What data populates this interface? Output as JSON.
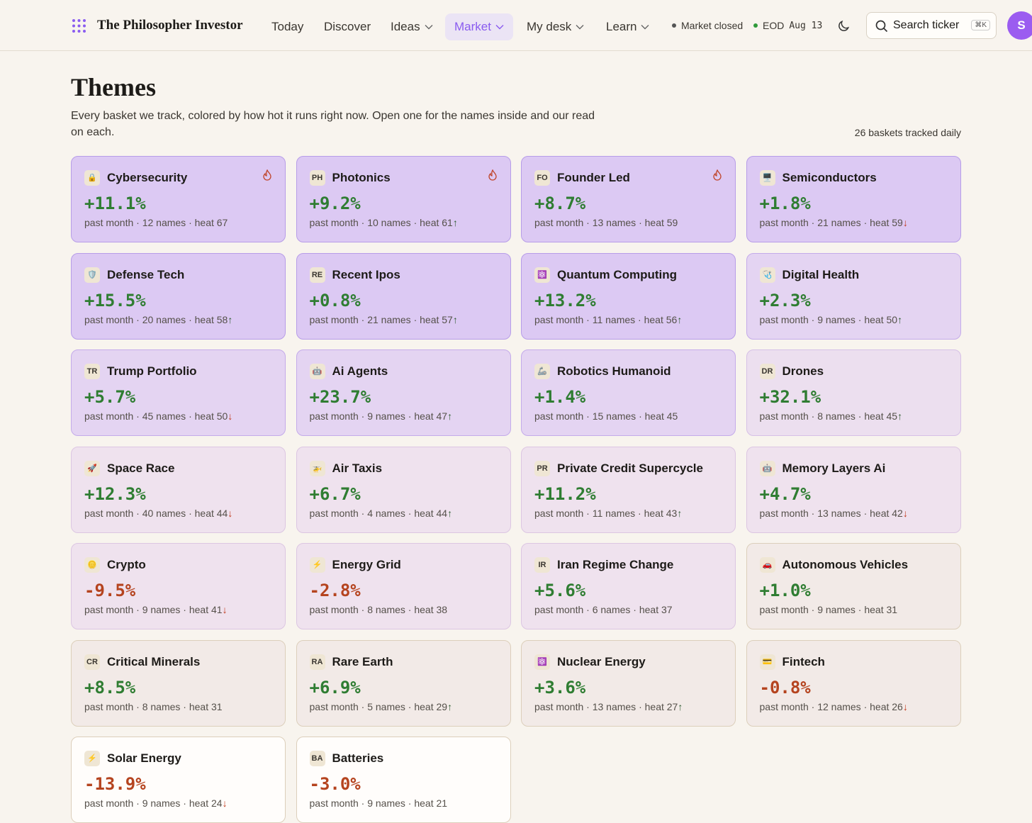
{
  "header": {
    "brand": "The Philosopher Investor",
    "nav": [
      "Today",
      "Discover",
      "Ideas",
      "Market",
      "My desk",
      "Learn"
    ],
    "active_nav": 3,
    "dropdown_nav": [
      2,
      3,
      4,
      5
    ],
    "status": [
      "Market closed"
    ],
    "eod_label": "EOD",
    "eod_date": "Aug 13",
    "search": "Search ticker",
    "shortcut": "⌘K",
    "avatar": "S"
  },
  "page": {
    "title": "Themes",
    "description": "Every basket we track, colored by how hot it runs right now. Open one for the names inside and our read on each.",
    "count": "26 baskets tracked daily"
  },
  "cards": [
    {
      "icon": "🔒",
      "name": "Cybersecurity",
      "change": "+11.1%",
      "meta": "past month · 12 names · heat 67",
      "hot": true,
      "color": "#2f7d32",
      "bg": "#dcc9f3",
      "border": "#b79de8"
    },
    {
      "icon": "PH",
      "name": "Photonics",
      "change": "+9.2%",
      "meta": "past month · 10 names · heat 61",
      "trend": "↑",
      "trend_color": "#2f5d32",
      "hot": true,
      "color": "#2f7d32",
      "bg": "#dcc9f3",
      "border": "#b79de8"
    },
    {
      "icon": "FO",
      "name": "Founder Led",
      "change": "+8.7%",
      "meta": "past month · 13 names · heat 59",
      "hot": true,
      "color": "#2f7d32",
      "bg": "#dcc9f3",
      "border": "#b79de8"
    },
    {
      "icon": "🖥️",
      "name": "Semiconductors",
      "change": "+1.8%",
      "meta": "past month · 21 names · heat 59",
      "trend": "↓",
      "trend_color": "#c0391b",
      "color": "#2f7d32",
      "bg": "#dcc9f3",
      "border": "#b79de8"
    },
    {
      "icon": "🛡️",
      "name": "Defense Tech",
      "change": "+15.5%",
      "meta": "past month · 20 names · heat 58",
      "trend": "↑",
      "trend_color": "#2f5d32",
      "color": "#2f7d32",
      "bg": "#dcc9f3",
      "border": "#b79de8"
    },
    {
      "icon": "RE",
      "name": "Recent Ipos",
      "change": "+0.8%",
      "meta": "past month · 21 names · heat 57",
      "trend": "↑",
      "trend_color": "#2f5d32",
      "color": "#2f7d32",
      "bg": "#dcc9f3",
      "border": "#b79de8"
    },
    {
      "icon": "⚛️",
      "name": "Quantum Computing",
      "change": "+13.2%",
      "meta": "past month · 11 names · heat 56",
      "trend": "↑",
      "trend_color": "#2f5d32",
      "color": "#2f7d32",
      "bg": "#dcc9f3",
      "border": "#b79de8"
    },
    {
      "icon": "🩺",
      "name": "Digital Health",
      "change": "+2.3%",
      "meta": "past month · 9 names · heat 50",
      "trend": "↑",
      "trend_color": "#2f5d32",
      "color": "#2f7d32",
      "bg": "#e4d4f2",
      "border": "#c4abea"
    },
    {
      "icon": "TR",
      "name": "Trump Portfolio",
      "change": "+5.7%",
      "meta": "past month · 45 names · heat 50",
      "trend": "↓",
      "trend_color": "#c0391b",
      "color": "#2f7d32",
      "bg": "#e4d4f2",
      "border": "#c4abea"
    },
    {
      "icon": "🤖",
      "name": "Ai Agents",
      "change": "+23.7%",
      "meta": "past month · 9 names · heat 47",
      "trend": "↑",
      "trend_color": "#2f5d32",
      "color": "#2f7d32",
      "bg": "#e4d4f2",
      "border": "#c4abea"
    },
    {
      "icon": "🦾",
      "name": "Robotics Humanoid",
      "change": "+1.4%",
      "meta": "past month · 15 names · heat 45",
      "color": "#2f7d32",
      "bg": "#e4d4f2",
      "border": "#c4abea"
    },
    {
      "icon": "DR",
      "name": "Drones",
      "change": "+32.1%",
      "meta": "past month · 8 names · heat 45",
      "trend": "↑",
      "trend_color": "#2f5d32",
      "color": "#2f7d32",
      "bg": "#ecdfef",
      "border": "#d6c0e6"
    },
    {
      "icon": "🚀",
      "name": "Space Race",
      "change": "+12.3%",
      "meta": "past month · 40 names · heat 44",
      "trend": "↓",
      "trend_color": "#c0391b",
      "color": "#2f7d32",
      "bg": "#efe2ee",
      "border": "#dcc6e2"
    },
    {
      "icon": "🚁",
      "name": "Air Taxis",
      "change": "+6.7%",
      "meta": "past month · 4 names · heat 44",
      "trend": "↑",
      "trend_color": "#2f5d32",
      "color": "#2f7d32",
      "bg": "#efe2ee",
      "border": "#dcc6e2"
    },
    {
      "icon": "PR",
      "name": "Private Credit Supercycle",
      "change": "+11.2%",
      "meta": "past month · 11 names · heat 43",
      "trend": "↑",
      "trend_color": "#2f5d32",
      "color": "#2f7d32",
      "bg": "#efe2ee",
      "border": "#dcc6e2"
    },
    {
      "icon": "🤖",
      "name": "Memory Layers Ai",
      "change": "+4.7%",
      "meta": "past month · 13 names · heat 42",
      "trend": "↓",
      "trend_color": "#c0391b",
      "color": "#2f7d32",
      "bg": "#efe2ee",
      "border": "#dcc6e2"
    },
    {
      "icon": "🪙",
      "name": "Crypto",
      "change": "-9.5%",
      "meta": "past month · 9 names · heat 41",
      "trend": "↓",
      "trend_color": "#c0391b",
      "color": "#b5441f",
      "bg": "#efe2ee",
      "border": "#dcc6e2"
    },
    {
      "icon": "⚡",
      "name": "Energy Grid",
      "change": "-2.8%",
      "meta": "past month · 8 names · heat 38",
      "color": "#b5441f",
      "bg": "#efe2ee",
      "border": "#dcc6e2"
    },
    {
      "icon": "IR",
      "name": "Iran Regime Change",
      "change": "+5.6%",
      "meta": "past month · 6 names · heat 37",
      "color": "#2f7d32",
      "bg": "#efe2ee",
      "border": "#dcc6e2"
    },
    {
      "icon": "🚗",
      "name": "Autonomous Vehicles",
      "change": "+1.0%",
      "meta": "past month · 9 names · heat 31",
      "color": "#2f7d32",
      "bg": "#f2eae7",
      "border": "#dccfbb"
    },
    {
      "icon": "CR",
      "name": "Critical Minerals",
      "change": "+8.5%",
      "meta": "past month · 8 names · heat 31",
      "color": "#2f7d32",
      "bg": "#f2eae7",
      "border": "#dccfbb"
    },
    {
      "icon": "RA",
      "name": "Rare Earth",
      "change": "+6.9%",
      "meta": "past month · 5 names · heat 29",
      "trend": "↑",
      "trend_color": "#2f5d32",
      "color": "#2f7d32",
      "bg": "#f2eae7",
      "border": "#dccfbb"
    },
    {
      "icon": "⚛️",
      "name": "Nuclear Energy",
      "change": "+3.6%",
      "meta": "past month · 13 names · heat 27",
      "trend": "↑",
      "trend_color": "#2f5d32",
      "color": "#2f7d32",
      "bg": "#f2eae7",
      "border": "#dccfbb"
    },
    {
      "icon": "💳",
      "name": "Fintech",
      "change": "-0.8%",
      "meta": "past month · 12 names · heat 26",
      "trend": "↓",
      "trend_color": "#c0391b",
      "color": "#b5441f",
      "bg": "#f2eae7",
      "border": "#dccfbb"
    },
    {
      "icon": "⚡",
      "name": "Solar Energy",
      "change": "-13.9%",
      "meta": "past month · 9 names · heat 24",
      "trend": "↓",
      "trend_color": "#c0391b",
      "color": "#b5441f",
      "bg": "#fffdfb",
      "border": "#dccfbb"
    },
    {
      "icon": "BA",
      "name": "Batteries",
      "change": "-3.0%",
      "meta": "past month · 9 names · heat 21",
      "color": "#b5441f",
      "bg": "#fffdfb",
      "border": "#dccfbb"
    }
  ]
}
